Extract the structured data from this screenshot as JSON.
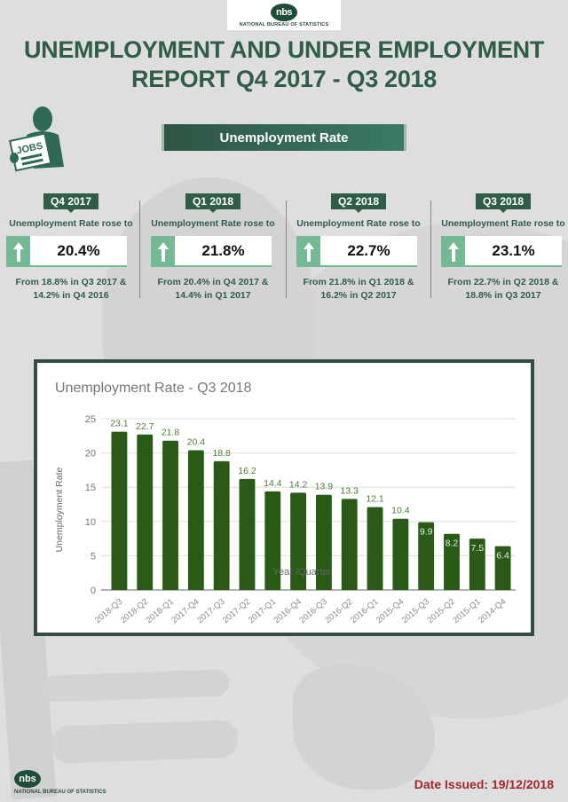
{
  "header": {
    "logo_mark": "nbs",
    "logo_text": "NATIONAL BUREAU OF STATISTICS",
    "title_line1": "UNEMPLOYMENT AND UNDER EMPLOYMENT",
    "title_line2": "REPORT Q4 2017 - Q3 2018"
  },
  "jobs_icon": {
    "label": "JOBS"
  },
  "section": {
    "title": "Unemployment Rate"
  },
  "kpis": [
    {
      "quarter": "Q4 2017",
      "label": "Unemployment Rate rose to",
      "value": "20.4%",
      "from_line1": "From 18.8% in Q3 2017 &",
      "from_line2": "14.2% in Q4 2016",
      "trend": "up"
    },
    {
      "quarter": "Q1 2018",
      "label": "Unemployment Rate rose to",
      "value": "21.8%",
      "from_line1": "From 20.4% in Q4 2017 &",
      "from_line2": "14.4% in Q1 2017",
      "trend": "up"
    },
    {
      "quarter": "Q2 2018",
      "label": "Unemployment Rate rose to",
      "value": "22.7%",
      "from_line1": "From 21.8% in Q1 2018 &",
      "from_line2": "16.2% in Q2 2017",
      "trend": "up"
    },
    {
      "quarter": "Q3 2018",
      "label": "Unemployment Rate rose to",
      "value": "23.1%",
      "from_line1": "From 22.7% in Q2 2018 &",
      "from_line2": "18.8% in Q3 2017",
      "trend": "up"
    }
  ],
  "colors": {
    "brand_green": "#2f5d48",
    "bar_green": "#2a5a17",
    "arrow_green": "#74b894",
    "date_red": "#a0282c"
  },
  "chart_data": {
    "type": "bar",
    "title": "Unemployment Rate - Q3 2018",
    "xlabel": "Year /Quarter",
    "ylabel": "Unemployment Rate",
    "ylim": [
      0,
      25
    ],
    "yticks": [
      0,
      5,
      10,
      15,
      20,
      25
    ],
    "grid": true,
    "legend": null,
    "categories": [
      "2018-Q3",
      "2018-Q2",
      "2018-Q1",
      "2017-Q4",
      "2017-Q3",
      "2017-Q2",
      "2017-Q1",
      "2016-Q4",
      "2016-Q3",
      "2016-Q2",
      "2016-Q1",
      "2015-Q4",
      "2015-Q3",
      "2015-Q2",
      "2015-Q1",
      "2014-Q4"
    ],
    "values": [
      23.1,
      22.7,
      21.8,
      20.4,
      18.8,
      16.2,
      14.4,
      14.2,
      13.9,
      13.3,
      12.1,
      10.4,
      9.9,
      8.2,
      7.5,
      6.4
    ]
  },
  "footer": {
    "logo_mark": "nbs",
    "logo_text": "NATIONAL BUREAU OF STATISTICS",
    "date_issued": "Date Issued: 19/12/2018"
  }
}
